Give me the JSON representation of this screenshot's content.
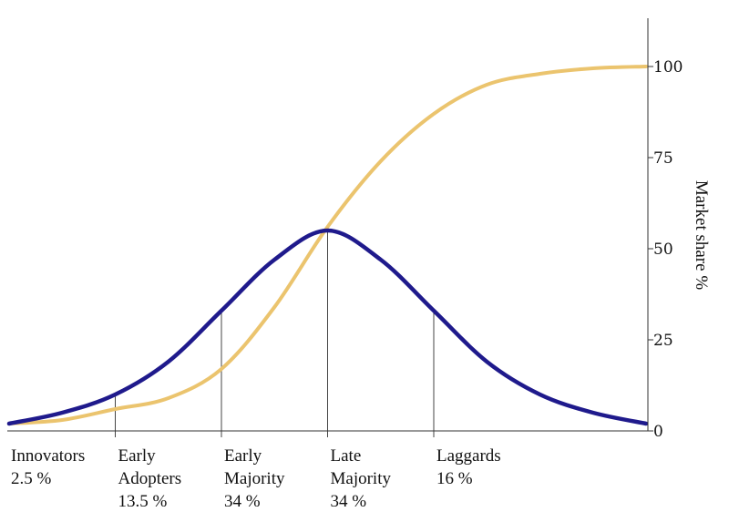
{
  "chart_data": {
    "type": "line",
    "ylabel": "Market share %",
    "xlabel": "",
    "ylim": [
      0,
      112
    ],
    "yticks": [
      0,
      25,
      50,
      75,
      100
    ],
    "boundaries": [
      -2,
      -1,
      0,
      1
    ],
    "categories": [
      {
        "lines": [
          "Innovators",
          "2.5 %"
        ]
      },
      {
        "lines": [
          "Early",
          "Adopters",
          "13.5 %"
        ]
      },
      {
        "lines": [
          "Early",
          "Majority",
          "34 %"
        ]
      },
      {
        "lines": [
          "Late",
          "Majority",
          "34 %"
        ]
      },
      {
        "lines": [
          "Laggards",
          "16 %"
        ]
      }
    ],
    "series": [
      {
        "kind": "adoption-bell",
        "color": "#1f1a8c",
        "x": [
          -3.0,
          -2.5,
          -2.0,
          -1.5,
          -1.0,
          -0.5,
          0.0,
          0.5,
          1.0,
          1.5,
          2.0,
          2.5,
          3.0
        ],
        "y": [
          2,
          5,
          10,
          19,
          33,
          47,
          55,
          47,
          33,
          19,
          10,
          5,
          2
        ]
      },
      {
        "kind": "cumulative-market-share",
        "color": "#ebc46e",
        "x": [
          -3.0,
          -2.5,
          -2.0,
          -1.5,
          -1.0,
          -0.5,
          0.0,
          0.5,
          1.0,
          1.5,
          2.0,
          2.5,
          3.0
        ],
        "y": [
          2,
          3,
          6,
          9,
          17,
          34,
          56,
          74,
          87,
          95,
          98,
          99.5,
          100
        ]
      }
    ]
  }
}
